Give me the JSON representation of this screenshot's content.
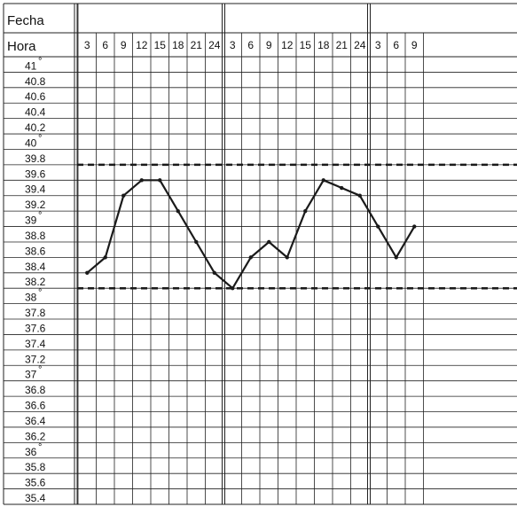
{
  "chart_data": {
    "type": "line",
    "header_rows": [
      "Fecha",
      "Hora"
    ],
    "hour_labels": [
      "3",
      "6",
      "9",
      "12",
      "15",
      "18",
      "21",
      "24",
      "3",
      "6",
      "9",
      "12",
      "15",
      "18",
      "21",
      "24",
      "3",
      "6",
      "9"
    ],
    "y_labels": [
      {
        "text": "41",
        "deg": true
      },
      {
        "text": "40.8",
        "deg": false
      },
      {
        "text": "40.6",
        "deg": false
      },
      {
        "text": "40.4",
        "deg": false
      },
      {
        "text": "40.2",
        "deg": false
      },
      {
        "text": "40",
        "deg": true
      },
      {
        "text": "39.8",
        "deg": false
      },
      {
        "text": "39.6",
        "deg": false
      },
      {
        "text": "39.4",
        "deg": false
      },
      {
        "text": "39.2",
        "deg": false
      },
      {
        "text": "39",
        "deg": true
      },
      {
        "text": "38.8",
        "deg": false
      },
      {
        "text": "38.6",
        "deg": false
      },
      {
        "text": "38.4",
        "deg": false
      },
      {
        "text": "38.2",
        "deg": false
      },
      {
        "text": "38",
        "deg": true
      },
      {
        "text": "37.8",
        "deg": false
      },
      {
        "text": "37.6",
        "deg": false
      },
      {
        "text": "37.4",
        "deg": false
      },
      {
        "text": "37.2",
        "deg": false
      },
      {
        "text": "37",
        "deg": true
      },
      {
        "text": "36.8",
        "deg": false
      },
      {
        "text": "36.6",
        "deg": false
      },
      {
        "text": "36.4",
        "deg": false
      },
      {
        "text": "36.2",
        "deg": false
      },
      {
        "text": "36",
        "deg": true
      },
      {
        "text": "35.8",
        "deg": false
      },
      {
        "text": "35.6",
        "deg": false
      },
      {
        "text": "35.4",
        "deg": false
      }
    ],
    "ylim": [
      35.4,
      41
    ],
    "thresholds": [
      39.7,
      38.1
    ],
    "series": [
      {
        "values": [
          38.3,
          38.5,
          39.3,
          39.5,
          39.5,
          39.1,
          38.7,
          38.3,
          38.1,
          38.5,
          38.7,
          38.5,
          39.1,
          39.5,
          39.4,
          39.3,
          38.9,
          38.5,
          38.9
        ],
        "color": "#1a1a1a"
      }
    ],
    "grid": true,
    "legend": "none"
  }
}
